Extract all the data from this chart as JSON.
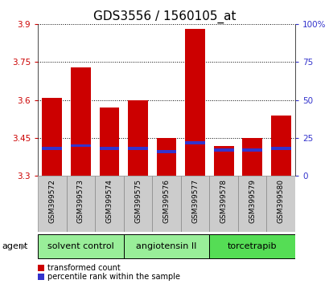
{
  "title": "GDS3556 / 1560105_at",
  "samples": [
    "GSM399572",
    "GSM399573",
    "GSM399574",
    "GSM399575",
    "GSM399576",
    "GSM399577",
    "GSM399578",
    "GSM399579",
    "GSM399580"
  ],
  "transformed_counts": [
    3.61,
    3.73,
    3.57,
    3.6,
    3.45,
    3.88,
    3.42,
    3.45,
    3.54
  ],
  "percentile_ranks_pct": [
    18,
    20,
    18,
    18,
    16,
    22,
    17,
    17,
    18
  ],
  "ymin": 3.3,
  "ymax": 3.9,
  "y_ticks": [
    3.3,
    3.45,
    3.6,
    3.75,
    3.9
  ],
  "right_y_ticks_pct": [
    0,
    25,
    50,
    75,
    100
  ],
  "right_y_labels": [
    "0",
    "25",
    "50",
    "75",
    "100%"
  ],
  "bar_color": "#cc0000",
  "blue_color": "#3333cc",
  "bar_width": 0.7,
  "agents_info": [
    {
      "label": "solvent control",
      "start": 0,
      "end": 2,
      "color": "#99ee99"
    },
    {
      "label": "angiotensin II",
      "start": 3,
      "end": 5,
      "color": "#99ee99"
    },
    {
      "label": "torcetrapib",
      "start": 6,
      "end": 8,
      "color": "#55dd55"
    }
  ],
  "legend_items": [
    {
      "color": "#cc0000",
      "label": "transformed count"
    },
    {
      "color": "#3333cc",
      "label": "percentile rank within the sample"
    }
  ],
  "title_fontsize": 11,
  "axis_label_color_left": "#cc0000",
  "axis_label_color_right": "#3333cc",
  "tick_label_fontsize": 7.5,
  "xtick_label_fontsize": 6.5,
  "legend_fontsize": 7,
  "agent_fontsize": 8,
  "xticklabel_bg": "#cccccc",
  "plot_bg": "#ffffff"
}
